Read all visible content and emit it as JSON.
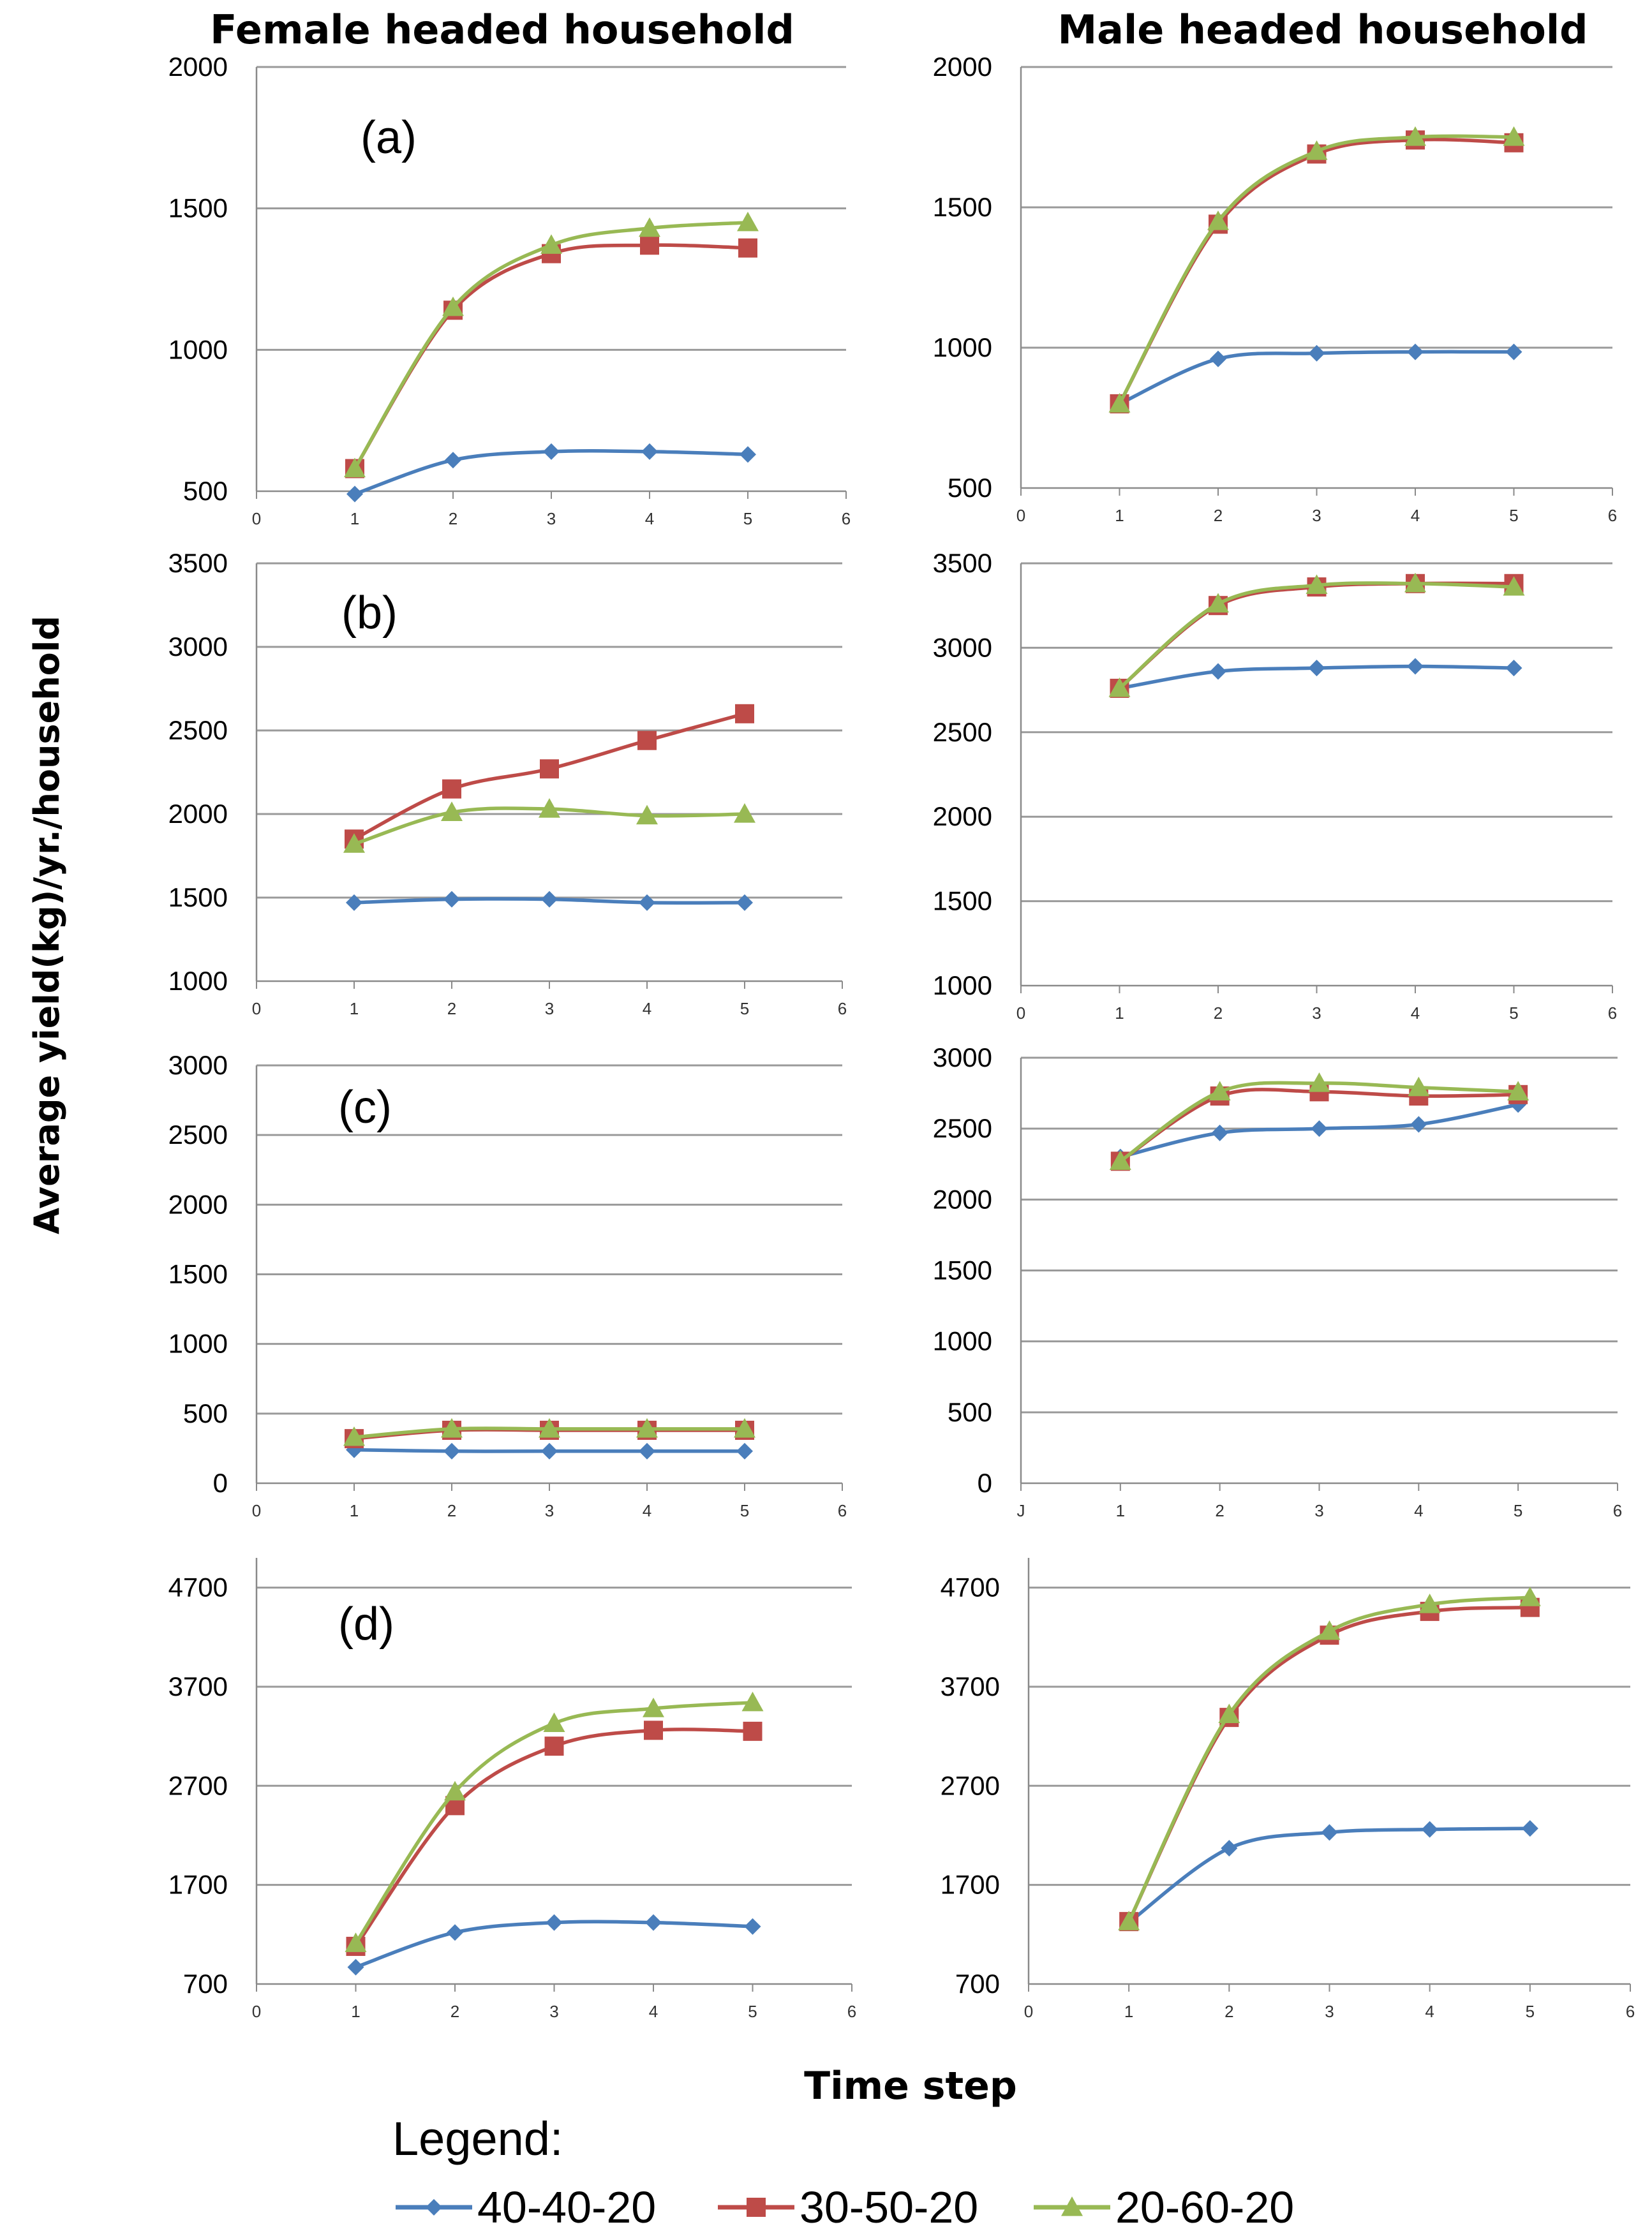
{
  "column_titles": [
    "Female headed household",
    "Male headed household"
  ],
  "ylabel": "Average yield(kg)/yr./household",
  "xlabel": "Time step",
  "legend": {
    "title": "Legend:",
    "entries": [
      "40-40-20",
      "30-50-20",
      "20-60-20"
    ]
  },
  "colors": {
    "40-40-20": "#4a7ebb",
    "30-50-20": "#be4b48",
    "20-60-20": "#98b954"
  },
  "chart_data": [
    {
      "type": "line",
      "panel": "(a)",
      "household": "Female headed household",
      "xticks": [
        "0",
        "1",
        "2",
        "3",
        "4",
        "5",
        "6"
      ],
      "x": [
        1,
        2,
        3,
        4,
        5
      ],
      "ylim": [
        500,
        2000
      ],
      "yticks": [
        "500",
        "1000",
        "1500",
        "2000"
      ],
      "series": [
        {
          "name": "40-40-20",
          "values": [
            490,
            610,
            640,
            640,
            630
          ]
        },
        {
          "name": "30-50-20",
          "values": [
            580,
            1140,
            1340,
            1370,
            1360
          ]
        },
        {
          "name": "20-60-20",
          "values": [
            580,
            1150,
            1370,
            1430,
            1450
          ]
        }
      ]
    },
    {
      "type": "line",
      "panel": "",
      "household": "Male headed household",
      "xticks": [
        "0",
        "1",
        "2",
        "3",
        "4",
        "5",
        "6"
      ],
      "x": [
        1,
        2,
        3,
        4,
        5
      ],
      "ylim": [
        500,
        2000
      ],
      "yticks": [
        "500",
        "1000",
        "1500",
        "2000"
      ],
      "series": [
        {
          "name": "40-40-20",
          "values": [
            800,
            960,
            980,
            985,
            985
          ]
        },
        {
          "name": "30-50-20",
          "values": [
            800,
            1440,
            1690,
            1740,
            1730
          ]
        },
        {
          "name": "20-60-20",
          "values": [
            800,
            1450,
            1700,
            1750,
            1750
          ]
        }
      ]
    },
    {
      "type": "line",
      "panel": "(b)",
      "household": "Female headed household",
      "xticks": [
        "0",
        "1",
        "2",
        "3",
        "4",
        "5",
        "6"
      ],
      "x": [
        1,
        2,
        3,
        4,
        5
      ],
      "ylim": [
        1000,
        3500
      ],
      "yticks": [
        "1000",
        "1500",
        "2000",
        "2500",
        "3000",
        "3500"
      ],
      "series": [
        {
          "name": "40-40-20",
          "values": [
            1470,
            1490,
            1490,
            1470,
            1470
          ]
        },
        {
          "name": "30-50-20",
          "values": [
            1850,
            2150,
            2270,
            2440,
            2600
          ]
        },
        {
          "name": "20-60-20",
          "values": [
            1820,
            2010,
            2030,
            1990,
            2000
          ]
        }
      ]
    },
    {
      "type": "line",
      "panel": "",
      "household": "Male headed household",
      "xticks": [
        "0",
        "1",
        "2",
        "3",
        "4",
        "5",
        "6"
      ],
      "x": [
        1,
        2,
        3,
        4,
        5
      ],
      "ylim": [
        1000,
        3500
      ],
      "yticks": [
        "1000",
        "1500",
        "2000",
        "2500",
        "3000",
        "3500"
      ],
      "series": [
        {
          "name": "40-40-20",
          "values": [
            2760,
            2860,
            2880,
            2890,
            2880
          ]
        },
        {
          "name": "30-50-20",
          "values": [
            2760,
            3250,
            3360,
            3380,
            3380
          ]
        },
        {
          "name": "20-60-20",
          "values": [
            2760,
            3260,
            3370,
            3380,
            3360
          ]
        }
      ]
    },
    {
      "type": "line",
      "panel": "(c)",
      "household": "Female headed household",
      "xticks": [
        "0",
        "1",
        "2",
        "3",
        "4",
        "5",
        "6"
      ],
      "x": [
        1,
        2,
        3,
        4,
        5
      ],
      "ylim": [
        0,
        3000
      ],
      "yticks": [
        "0",
        "500",
        "1000",
        "1500",
        "2000",
        "2500",
        "3000"
      ],
      "series": [
        {
          "name": "40-40-20",
          "values": [
            240,
            230,
            230,
            230,
            230
          ]
        },
        {
          "name": "30-50-20",
          "values": [
            320,
            380,
            380,
            380,
            380
          ]
        },
        {
          "name": "20-60-20",
          "values": [
            330,
            390,
            390,
            390,
            390
          ]
        }
      ]
    },
    {
      "type": "line",
      "panel": "",
      "household": "Male headed household",
      "xticks": [
        "J",
        "1",
        "2",
        "3",
        "4",
        "5",
        "6"
      ],
      "x": [
        1,
        2,
        3,
        4,
        5
      ],
      "ylim": [
        0,
        3000
      ],
      "yticks": [
        "0",
        "500",
        "1000",
        "1500",
        "2000",
        "2500",
        "3000"
      ],
      "series": [
        {
          "name": "40-40-20",
          "values": [
            2300,
            2470,
            2500,
            2530,
            2670
          ]
        },
        {
          "name": "30-50-20",
          "values": [
            2270,
            2730,
            2760,
            2730,
            2740
          ]
        },
        {
          "name": "20-60-20",
          "values": [
            2270,
            2760,
            2820,
            2790,
            2760
          ]
        }
      ]
    },
    {
      "type": "line",
      "panel": "(d)",
      "household": "Female headed household",
      "xticks": [
        "0",
        "1",
        "2",
        "3",
        "4",
        "5",
        "6"
      ],
      "x": [
        1,
        2,
        3,
        4,
        5
      ],
      "ylim": [
        700,
        5000
      ],
      "yticks": [
        "700",
        "1700",
        "2700",
        "3700",
        "4700"
      ],
      "series": [
        {
          "name": "40-40-20",
          "values": [
            870,
            1220,
            1320,
            1320,
            1280
          ]
        },
        {
          "name": "30-50-20",
          "values": [
            1080,
            2500,
            3100,
            3260,
            3250
          ]
        },
        {
          "name": "20-60-20",
          "values": [
            1110,
            2640,
            3330,
            3480,
            3540
          ]
        }
      ]
    },
    {
      "type": "line",
      "panel": "",
      "household": "Male headed household",
      "xticks": [
        "0",
        "1",
        "2",
        "3",
        "4",
        "5",
        "6"
      ],
      "x": [
        1,
        2,
        3,
        4,
        5
      ],
      "ylim": [
        700,
        5000
      ],
      "yticks": [
        "700",
        "1700",
        "2700",
        "3700",
        "4700"
      ],
      "series": [
        {
          "name": "40-40-20",
          "values": [
            1320,
            2070,
            2230,
            2260,
            2270
          ]
        },
        {
          "name": "30-50-20",
          "values": [
            1330,
            3390,
            4220,
            4460,
            4500
          ]
        },
        {
          "name": "20-60-20",
          "values": [
            1330,
            3420,
            4260,
            4530,
            4600
          ]
        }
      ]
    }
  ]
}
